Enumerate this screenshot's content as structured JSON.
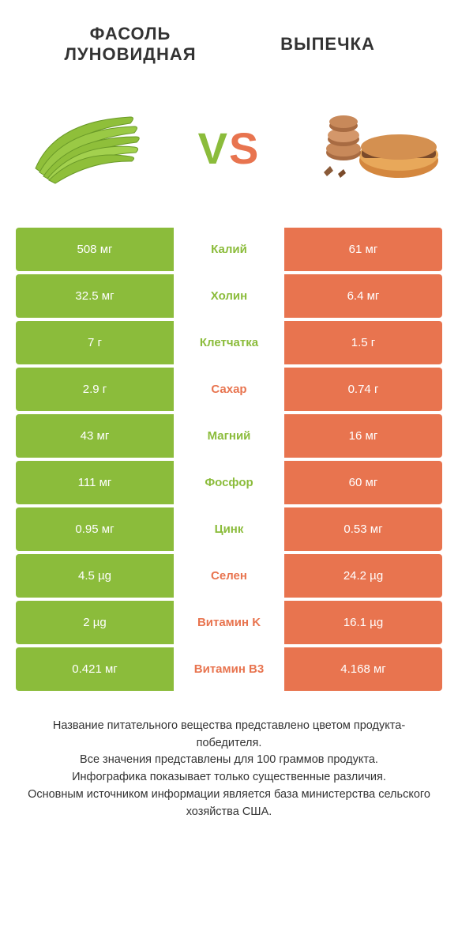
{
  "colors": {
    "green": "#8bbc3b",
    "orange": "#e8744f",
    "white": "#ffffff",
    "text": "#333333"
  },
  "header": {
    "left": "Фасоль луновидная",
    "right": "Выпечка"
  },
  "vs": {
    "v": "V",
    "s": "S"
  },
  "rows": [
    {
      "left": "508 мг",
      "center": "Калий",
      "right": "61 мг",
      "winner": "left"
    },
    {
      "left": "32.5 мг",
      "center": "Холин",
      "right": "6.4 мг",
      "winner": "left"
    },
    {
      "left": "7 г",
      "center": "Клетчатка",
      "right": "1.5 г",
      "winner": "left"
    },
    {
      "left": "2.9 г",
      "center": "Сахар",
      "right": "0.74 г",
      "winner": "right"
    },
    {
      "left": "43 мг",
      "center": "Магний",
      "right": "16 мг",
      "winner": "left"
    },
    {
      "left": "111 мг",
      "center": "Фосфор",
      "right": "60 мг",
      "winner": "left"
    },
    {
      "left": "0.95 мг",
      "center": "Цинк",
      "right": "0.53 мг",
      "winner": "left"
    },
    {
      "left": "4.5 µg",
      "center": "Селен",
      "right": "24.2 µg",
      "winner": "right"
    },
    {
      "left": "2 µg",
      "center": "Витамин K",
      "right": "16.1 µg",
      "winner": "right"
    },
    {
      "left": "0.421 мг",
      "center": "Витамин B3",
      "right": "4.168 мг",
      "winner": "right"
    }
  ],
  "footer": {
    "l1": "Название питательного вещества представлено цветом продукта-победителя.",
    "l2": "Все значения представлены для 100 граммов продукта.",
    "l3": "Инфографика показывает только существенные различия.",
    "l4": "Основным источником информации является база министерства сельского хозяйства США."
  }
}
